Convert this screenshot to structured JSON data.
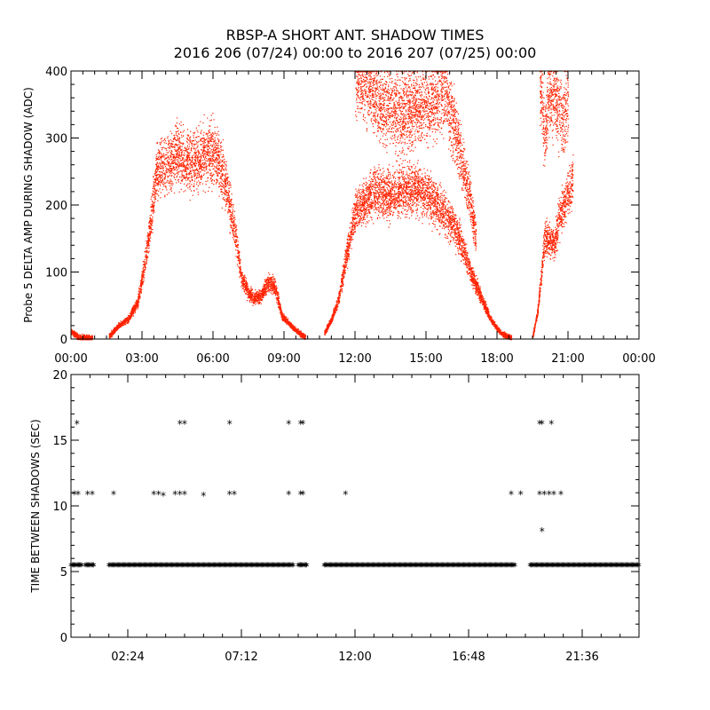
{
  "header": {
    "title": "RBSP-A SHORT ANT. SHADOW TIMES",
    "subtitle": "2016 206 (07/24) 00:00 to 2016 207 (07/25) 00:00"
  },
  "colors": {
    "top_points": "#ff2200",
    "bottom_points": "#000000",
    "axes": "#000000"
  },
  "chart_data": [
    {
      "type": "scatter",
      "ylabel": "Probe 5 DELTA AMP DURING SHADOW (ADC)",
      "xlabel": "",
      "xlim_hours": [
        0,
        24
      ],
      "ylim": [
        0,
        400
      ],
      "x_tick_labels": [
        "00:00",
        "03:00",
        "06:00",
        "09:00",
        "12:00",
        "15:00",
        "18:00",
        "21:00",
        "00:00"
      ],
      "x_tick_hours": [
        0,
        3,
        6,
        9,
        12,
        15,
        18,
        21,
        24
      ],
      "y_ticks": [
        0,
        100,
        200,
        300,
        400
      ],
      "x_minor_per_major": 6,
      "y_minor_per_major": 5,
      "point_color": "#ff2200",
      "segments": [
        {
          "x_hours": [
            0.0,
            0.3,
            0.4,
            0.9
          ],
          "y": [
            12,
            3,
            3,
            2
          ]
        },
        {
          "x_hours": [
            1.6,
            2.0,
            2.4,
            2.8,
            3.0,
            3.3,
            3.6,
            4.0,
            4.5,
            5.0,
            5.5,
            6.0,
            6.4,
            6.7,
            7.0,
            7.2,
            7.5,
            7.7,
            8.0,
            8.3,
            8.6,
            8.9,
            9.3,
            9.6,
            9.9
          ],
          "y": [
            5,
            20,
            30,
            55,
            90,
            160,
            250,
            260,
            275,
            265,
            270,
            280,
            250,
            200,
            140,
            90,
            70,
            60,
            65,
            85,
            80,
            35,
            20,
            10,
            3
          ]
        },
        {
          "x_hours": [
            10.7,
            11.0,
            11.3,
            11.6,
            12.0,
            12.5,
            13.0,
            13.5,
            14.0,
            14.5,
            15.0,
            15.5,
            16.0,
            16.3,
            16.6,
            17.0,
            17.4,
            17.8,
            18.2,
            18.6
          ],
          "y": [
            10,
            30,
            60,
            120,
            190,
            210,
            220,
            215,
            225,
            225,
            215,
            200,
            180,
            160,
            130,
            90,
            55,
            25,
            8,
            2
          ]
        },
        {
          "x_hours": [
            12.0,
            12.5,
            13.0,
            14.0,
            15.0,
            15.8,
            16.3,
            16.8,
            17.1
          ],
          "y": [
            400,
            380,
            350,
            340,
            350,
            370,
            300,
            220,
            150
          ]
        },
        {
          "x_hours": [
            19.5,
            19.7,
            19.9,
            20.0,
            20.2,
            20.4,
            20.6,
            20.8,
            21.0,
            21.2
          ],
          "y": [
            5,
            40,
            110,
            150,
            150,
            140,
            180,
            200,
            220,
            240
          ]
        },
        {
          "x_hours": [
            19.8,
            20.0,
            20.2,
            20.8,
            21.0
          ],
          "y": [
            380,
            300,
            370,
            330,
            360
          ]
        }
      ]
    },
    {
      "type": "scatter",
      "ylabel": "TIME BETWEEN SHADOWS (SEC)",
      "xlabel": "",
      "xlim_hours": [
        0,
        24
      ],
      "ylim": [
        0,
        20
      ],
      "x_tick_labels": [
        "02:24",
        "07:12",
        "12:00",
        "16:48",
        "21:36"
      ],
      "x_tick_hours": [
        2.4,
        7.2,
        12.0,
        16.8,
        21.6
      ],
      "y_ticks": [
        0,
        5,
        10,
        15,
        20
      ],
      "x_minor_per_major": 6,
      "y_minor_per_major": 5,
      "marker": "*",
      "point_color": "#000000",
      "baseline": {
        "y": 5.45,
        "ranges_hours": [
          [
            0.0,
            0.45
          ],
          [
            0.6,
            1.0
          ],
          [
            1.6,
            9.4
          ],
          [
            9.6,
            10.0
          ],
          [
            10.7,
            18.8
          ],
          [
            19.4,
            24.0
          ]
        ]
      },
      "points": [
        {
          "x": 0.25,
          "y": 16.3
        },
        {
          "x": 0.15,
          "y": 10.9
        },
        {
          "x": 0.3,
          "y": 10.9
        },
        {
          "x": 0.7,
          "y": 10.9
        },
        {
          "x": 0.9,
          "y": 10.9
        },
        {
          "x": 1.8,
          "y": 10.9
        },
        {
          "x": 3.5,
          "y": 10.9
        },
        {
          "x": 3.7,
          "y": 10.9
        },
        {
          "x": 3.9,
          "y": 10.8
        },
        {
          "x": 4.6,
          "y": 16.3
        },
        {
          "x": 4.8,
          "y": 16.3
        },
        {
          "x": 4.4,
          "y": 10.9
        },
        {
          "x": 4.6,
          "y": 10.9
        },
        {
          "x": 4.8,
          "y": 10.9
        },
        {
          "x": 5.6,
          "y": 10.8
        },
        {
          "x": 6.7,
          "y": 16.3
        },
        {
          "x": 6.7,
          "y": 10.9
        },
        {
          "x": 6.9,
          "y": 10.9
        },
        {
          "x": 9.2,
          "y": 16.3
        },
        {
          "x": 9.7,
          "y": 16.3
        },
        {
          "x": 9.8,
          "y": 16.3
        },
        {
          "x": 9.2,
          "y": 10.9
        },
        {
          "x": 9.7,
          "y": 10.9
        },
        {
          "x": 9.8,
          "y": 10.9
        },
        {
          "x": 11.6,
          "y": 10.9
        },
        {
          "x": 18.6,
          "y": 10.9
        },
        {
          "x": 19.0,
          "y": 10.9
        },
        {
          "x": 19.8,
          "y": 16.3
        },
        {
          "x": 19.9,
          "y": 16.3
        },
        {
          "x": 20.3,
          "y": 16.3
        },
        {
          "x": 19.8,
          "y": 10.9
        },
        {
          "x": 20.0,
          "y": 10.9
        },
        {
          "x": 20.2,
          "y": 10.9
        },
        {
          "x": 20.4,
          "y": 10.9
        },
        {
          "x": 20.7,
          "y": 10.9
        },
        {
          "x": 19.9,
          "y": 8.1
        }
      ]
    }
  ]
}
